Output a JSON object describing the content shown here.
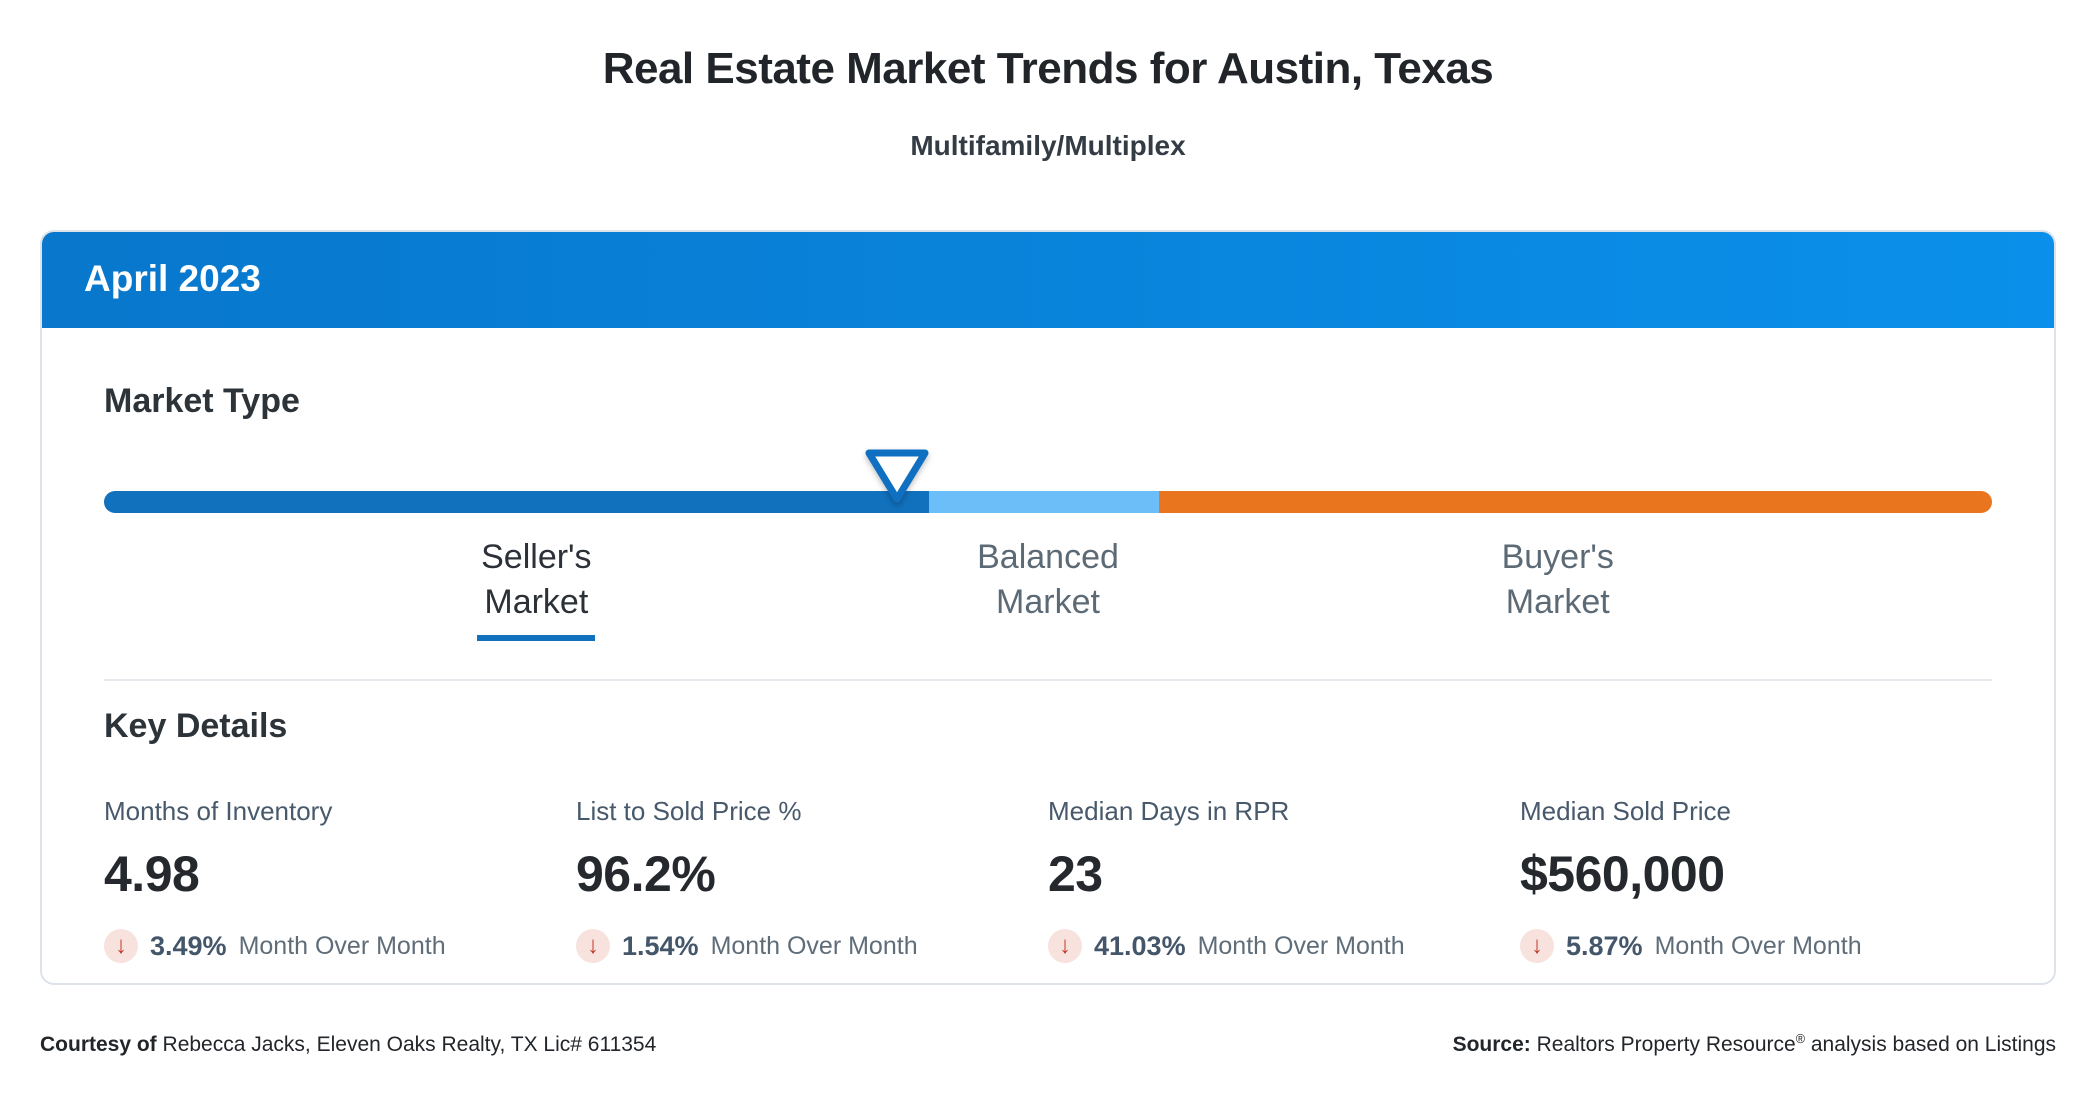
{
  "page": {
    "title": "Real Estate Market Trends for Austin, Texas",
    "subtitle": "Multifamily/Multiplex"
  },
  "card": {
    "period": "April 2023",
    "market_type": {
      "heading": "Market Type",
      "selected": "Seller's Market",
      "labels": [
        {
          "line1": "Seller's",
          "line2": "Market",
          "active": true
        },
        {
          "line1": "Balanced",
          "line2": "Market",
          "active": false
        },
        {
          "line1": "Buyer's",
          "line2": "Market",
          "active": false
        }
      ]
    },
    "key_details": {
      "heading": "Key Details",
      "metrics": [
        {
          "label": "Months of Inventory",
          "value": "4.98",
          "change": "3.49%",
          "direction": "down",
          "note": "Month Over Month"
        },
        {
          "label": "List to Sold Price %",
          "value": "96.2%",
          "change": "1.54%",
          "direction": "down",
          "note": "Month Over Month"
        },
        {
          "label": "Median Days in RPR",
          "value": "23",
          "change": "41.03%",
          "direction": "down",
          "note": "Month Over Month"
        },
        {
          "label": "Median Sold Price",
          "value": "$560,000",
          "change": "5.87%",
          "direction": "down",
          "note": "Month Over Month"
        }
      ]
    }
  },
  "chart_data": {
    "type": "bar",
    "subtype": "market-type-gauge",
    "title": "Market Type",
    "categories": [
      "Seller's Market",
      "Balanced Market",
      "Buyer's Market"
    ],
    "segment_width_pct": [
      43.7,
      12.2,
      44.1
    ],
    "segment_colors": [
      "#1171BD",
      "#6CBEF8",
      "#E9761F"
    ],
    "marker_position_pct": 42,
    "selected_category": "Seller's Market",
    "kpis": [
      {
        "name": "Months of Inventory",
        "value": 4.98,
        "mom_change_pct": -3.49
      },
      {
        "name": "List to Sold Price %",
        "value": 96.2,
        "mom_change_pct": -1.54
      },
      {
        "name": "Median Days in RPR",
        "value": 23,
        "mom_change_pct": -41.03
      },
      {
        "name": "Median Sold Price",
        "value": 560000,
        "mom_change_pct": -5.87
      }
    ]
  },
  "icons": {
    "down_arrow": "↓",
    "marker": "triangle-down-outline"
  },
  "colors": {
    "header_gradient_start": "#0877CC",
    "header_gradient_end": "#0A90EA",
    "sellers_segment": "#1171BD",
    "balanced_segment": "#6CBEF8",
    "buyers_segment": "#E9761F",
    "active_underline": "#1171BD",
    "change_down_red": "#C23B2A",
    "change_icon_bg": "#F8E2DE",
    "card_border": "#DDE3E9"
  },
  "footer": {
    "courtesy_label": "Courtesy of",
    "courtesy_text": "Rebecca Jacks, Eleven Oaks Realty, TX Lic# 611354",
    "source_label": "Source:",
    "source_name": "Realtors Property Resource",
    "source_reg": "®",
    "source_rest": "analysis based on Listings"
  }
}
